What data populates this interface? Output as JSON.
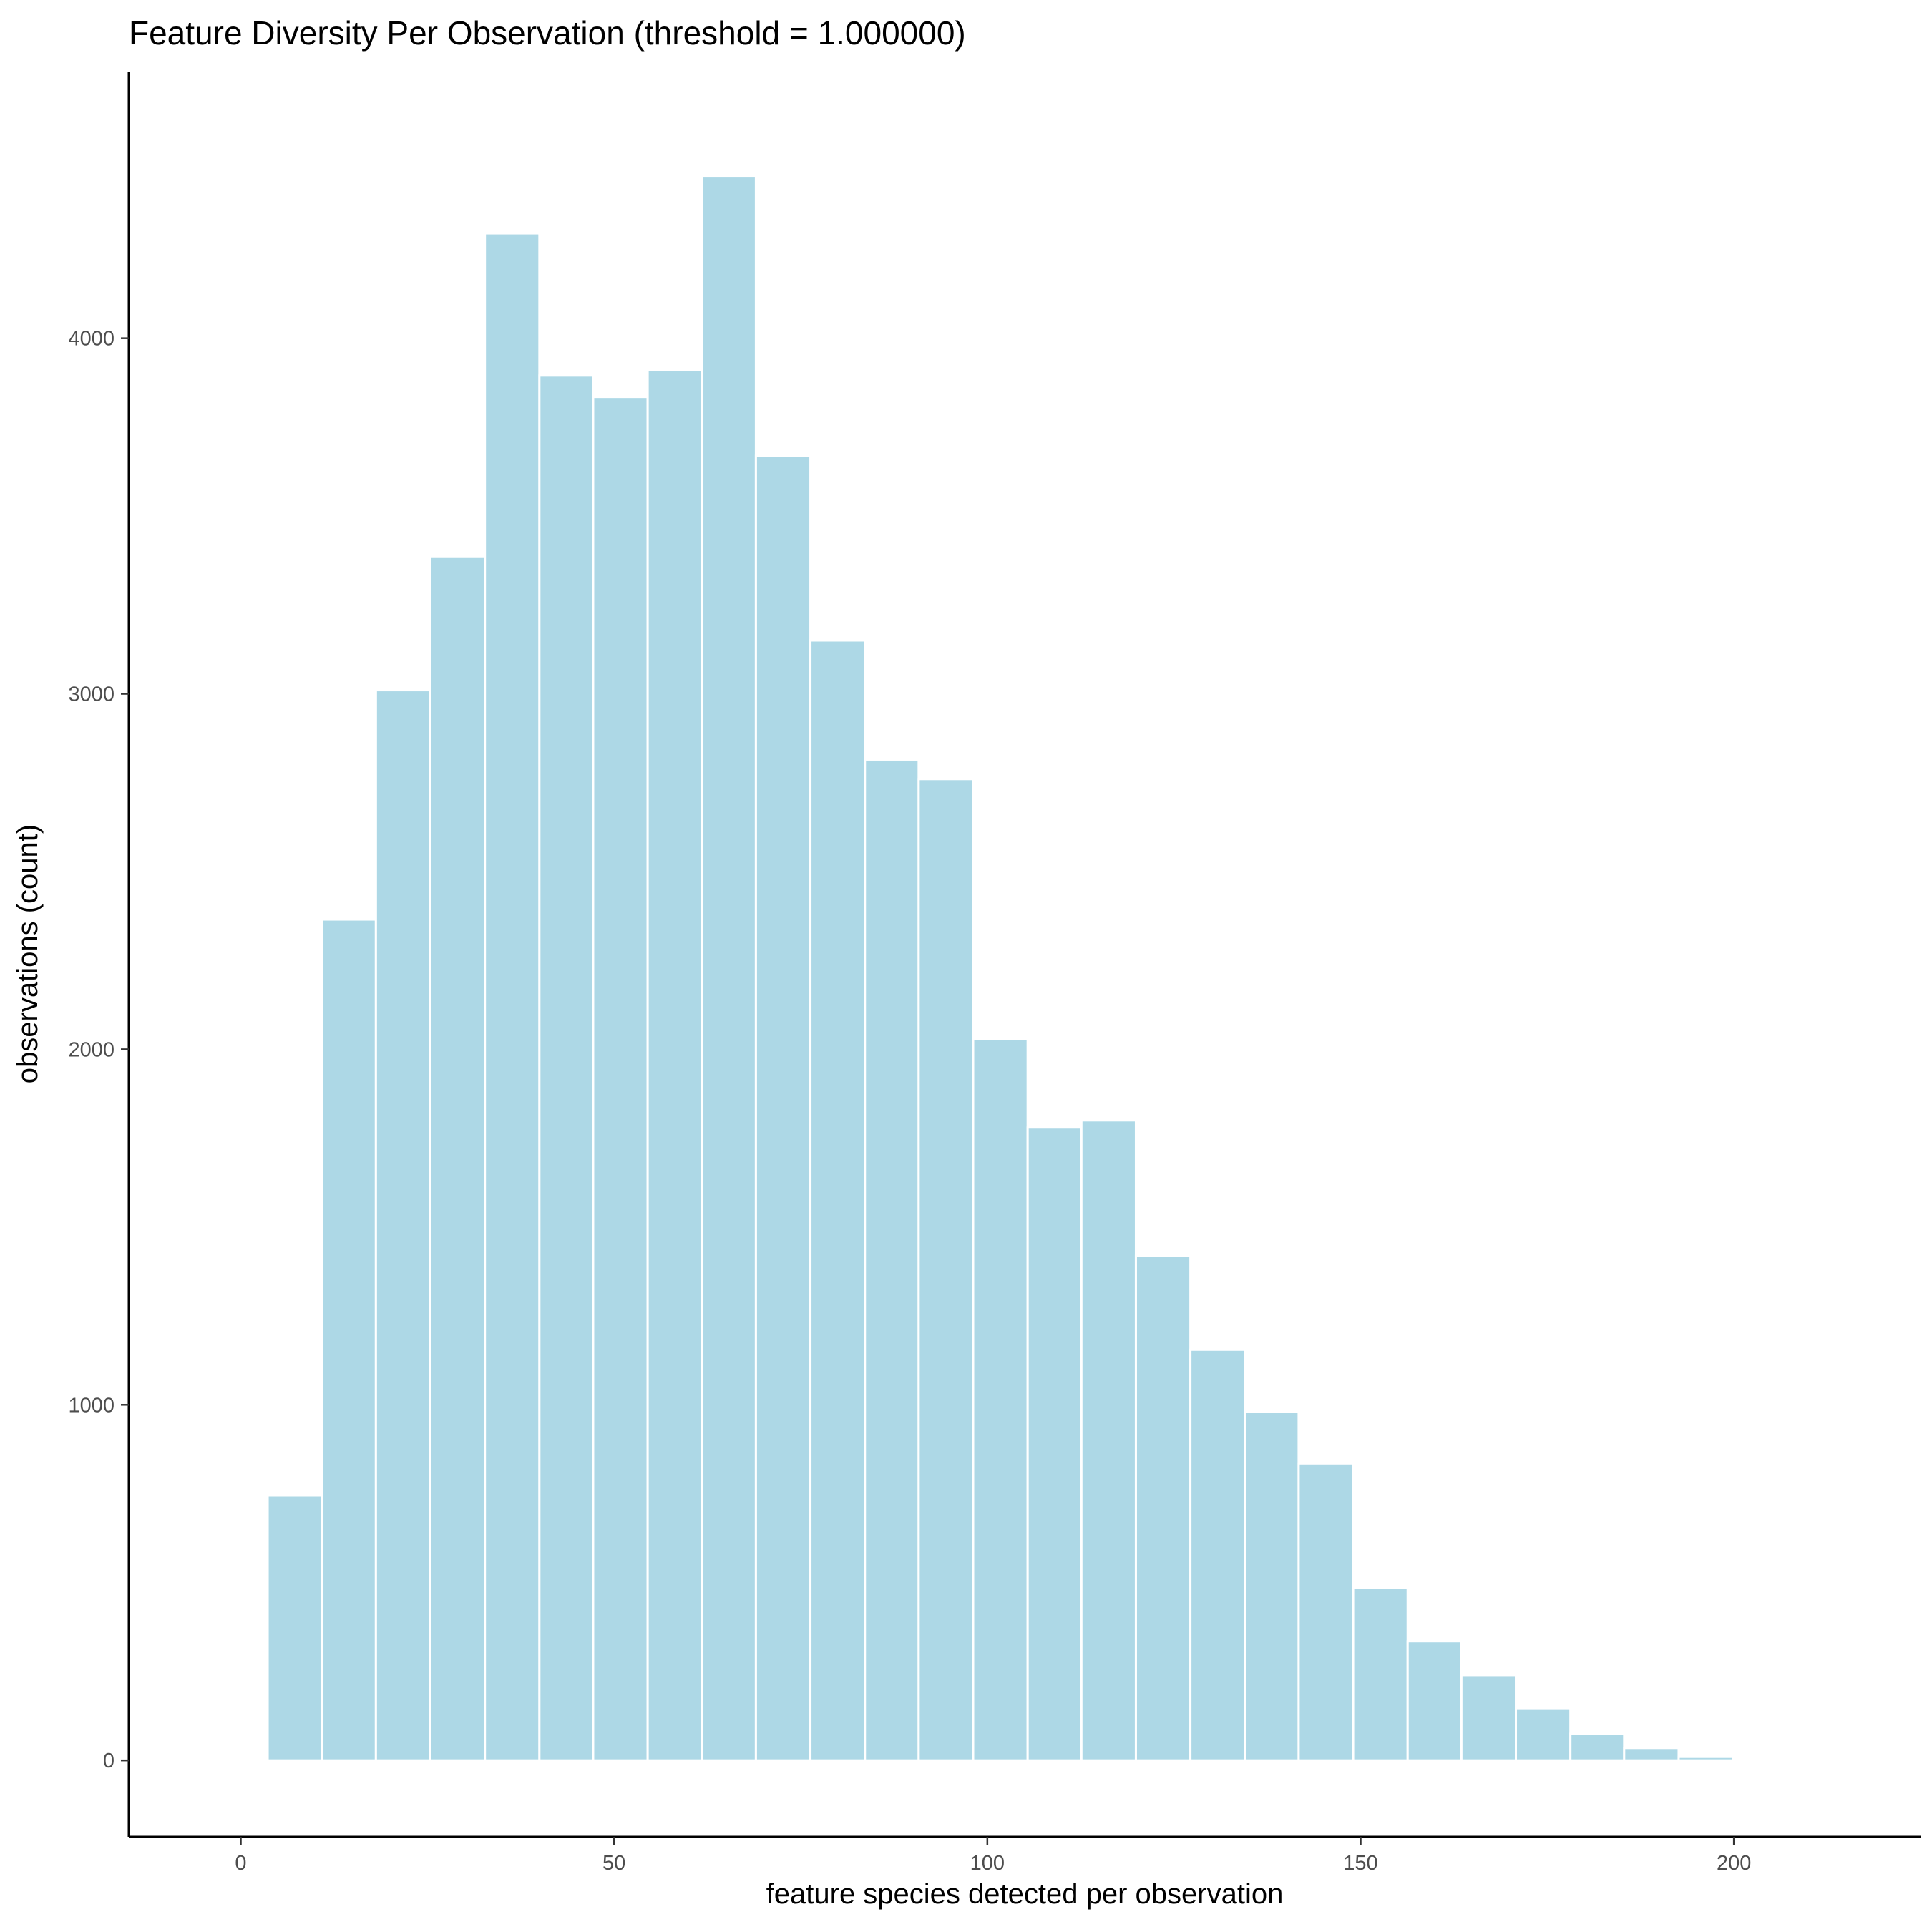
{
  "chart_data": {
    "type": "bar",
    "title": "Feature Diversity Per Observation (threshold = 1.000000)",
    "xlabel": "feature species detected per observation",
    "ylabel": "observations (count)",
    "xlim": [
      -15,
      225
    ],
    "ylim": [
      -215,
      4750
    ],
    "x_ticks": [
      0,
      50,
      100,
      150,
      200
    ],
    "x_tick_labels": [
      "0",
      "50",
      "100",
      "150",
      "200"
    ],
    "y_ticks": [
      0,
      1000,
      2000,
      3000,
      4000
    ],
    "y_tick_labels": [
      "0",
      "1000",
      "2000",
      "3000",
      "4000"
    ],
    "bin_width": 7.27,
    "bins": [
      {
        "x0": 3.6,
        "x1": 10.9,
        "count": 745
      },
      {
        "x0": 10.9,
        "x1": 18.1,
        "count": 2365
      },
      {
        "x0": 18.1,
        "x1": 25.4,
        "count": 3010
      },
      {
        "x0": 25.4,
        "x1": 32.7,
        "count": 3385
      },
      {
        "x0": 32.7,
        "x1": 40.0,
        "count": 4295
      },
      {
        "x0": 40.0,
        "x1": 47.2,
        "count": 3895
      },
      {
        "x0": 47.2,
        "x1": 54.5,
        "count": 3835
      },
      {
        "x0": 54.5,
        "x1": 61.8,
        "count": 3910
      },
      {
        "x0": 61.8,
        "x1": 69.0,
        "count": 4455
      },
      {
        "x0": 69.0,
        "x1": 76.3,
        "count": 3670
      },
      {
        "x0": 76.3,
        "x1": 83.6,
        "count": 3150
      },
      {
        "x0": 83.6,
        "x1": 90.8,
        "count": 2815
      },
      {
        "x0": 90.8,
        "x1": 98.1,
        "count": 2760
      },
      {
        "x0": 98.1,
        "x1": 105.4,
        "count": 2030
      },
      {
        "x0": 105.4,
        "x1": 112.6,
        "count": 1780
      },
      {
        "x0": 112.6,
        "x1": 119.9,
        "count": 1800
      },
      {
        "x0": 119.9,
        "x1": 127.2,
        "count": 1420
      },
      {
        "x0": 127.2,
        "x1": 134.5,
        "count": 1155
      },
      {
        "x0": 134.5,
        "x1": 141.7,
        "count": 980
      },
      {
        "x0": 141.7,
        "x1": 149.0,
        "count": 835
      },
      {
        "x0": 149.0,
        "x1": 156.3,
        "count": 485
      },
      {
        "x0": 156.3,
        "x1": 163.5,
        "count": 335
      },
      {
        "x0": 163.5,
        "x1": 170.8,
        "count": 240
      },
      {
        "x0": 170.8,
        "x1": 178.1,
        "count": 145
      },
      {
        "x0": 178.1,
        "x1": 185.3,
        "count": 75
      },
      {
        "x0": 185.3,
        "x1": 192.6,
        "count": 35
      },
      {
        "x0": 192.6,
        "x1": 199.9,
        "count": 10
      }
    ],
    "bar_fill": "#add8e6",
    "bar_outline": "#ffffff",
    "grid": false,
    "legend": "none"
  }
}
